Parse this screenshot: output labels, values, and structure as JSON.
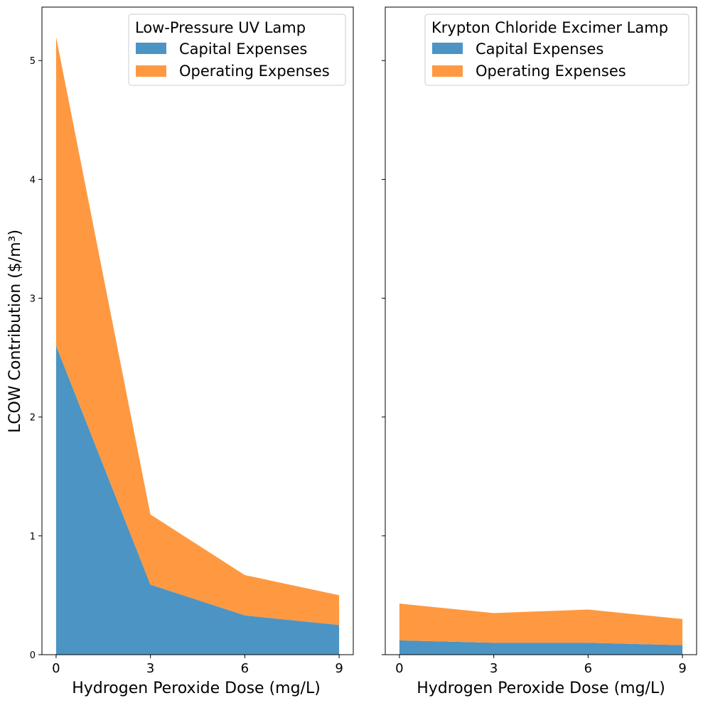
{
  "chart_data": [
    {
      "type": "area",
      "stacked": true,
      "legend_title": "Low-Pressure UV Lamp",
      "xlabel": "Hydrogen Peroxide Dose (mg/L)",
      "ylabel": "LCOW Contribution ($/m³)",
      "x": [
        0,
        3,
        6,
        9
      ],
      "xticks": [
        "0",
        "3",
        "6",
        "9"
      ],
      "yticks": [
        "0",
        "1",
        "2",
        "3",
        "4",
        "5"
      ],
      "xlim": [
        -0.45,
        9.45
      ],
      "ylim": [
        0,
        5.45
      ],
      "legend_position": "top-right",
      "grid": false,
      "series": [
        {
          "name": "Capital Expenses",
          "color": "#4c94c4",
          "values": [
            2.6,
            0.59,
            0.33,
            0.25
          ]
        },
        {
          "name": "Operating Expenses",
          "color": "#fe9941",
          "values": [
            2.6,
            0.59,
            0.34,
            0.25
          ]
        }
      ]
    },
    {
      "type": "area",
      "stacked": true,
      "legend_title": "Krypton Chloride Excimer Lamp",
      "xlabel": "Hydrogen Peroxide Dose (mg/L)",
      "ylabel": "",
      "x": [
        0,
        3,
        6,
        9
      ],
      "xticks": [
        "0",
        "3",
        "6",
        "9"
      ],
      "yticks": [],
      "xlim": [
        -0.45,
        9.45
      ],
      "ylim": [
        0,
        5.45
      ],
      "legend_position": "top-right",
      "grid": false,
      "series": [
        {
          "name": "Capital Expenses",
          "color": "#4c94c4",
          "values": [
            0.12,
            0.1,
            0.1,
            0.08
          ]
        },
        {
          "name": "Operating Expenses",
          "color": "#fe9941",
          "values": [
            0.31,
            0.25,
            0.28,
            0.22
          ]
        }
      ]
    }
  ]
}
